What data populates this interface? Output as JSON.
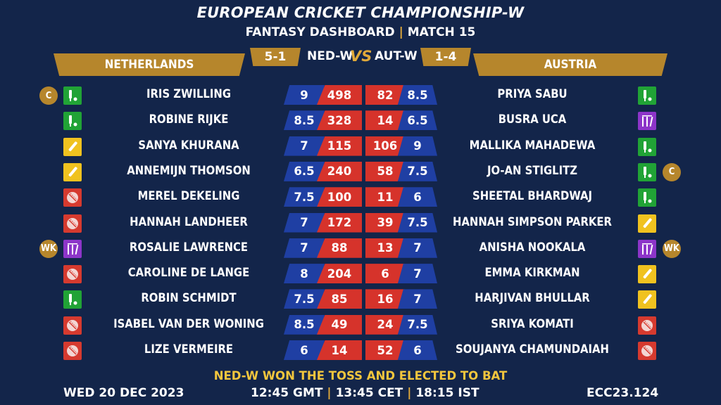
{
  "header": {
    "title": "EUROPEAN CRICKET CHAMPIONSHIP-W",
    "subtitle_left": "FANTASY DASHBOARD",
    "subtitle_sep": "|",
    "subtitle_right": "MATCH 15"
  },
  "match": {
    "team_left_name": "NETHERLANDS",
    "team_right_name": "AUSTRIA",
    "team_left_code": "NED-W",
    "team_right_code": "AUT-W",
    "team_left_record": "5-1",
    "team_right_record": "1-4",
    "vs": "VS"
  },
  "left_players": [
    {
      "name": "IRIS ZWILLING",
      "credit": "9",
      "points": "498",
      "role": "bat",
      "badge": "C"
    },
    {
      "name": "ROBINE RIJKE",
      "credit": "8.5",
      "points": "328",
      "role": "bat",
      "badge": ""
    },
    {
      "name": "SANYA KHURANA",
      "credit": "7",
      "points": "115",
      "role": "ar",
      "badge": ""
    },
    {
      "name": "ANNEMIJN THOMSON",
      "credit": "6.5",
      "points": "240",
      "role": "ar",
      "badge": ""
    },
    {
      "name": "MEREL DEKELING",
      "credit": "7.5",
      "points": "100",
      "role": "bowl",
      "badge": ""
    },
    {
      "name": "HANNAH LANDHEER",
      "credit": "7",
      "points": "172",
      "role": "bowl",
      "badge": ""
    },
    {
      "name": "ROSALIE LAWRENCE",
      "credit": "7",
      "points": "88",
      "role": "wk",
      "badge": "WK"
    },
    {
      "name": "CAROLINE DE LANGE",
      "credit": "8",
      "points": "204",
      "role": "bowl",
      "badge": ""
    },
    {
      "name": "ROBIN SCHMIDT",
      "credit": "7.5",
      "points": "85",
      "role": "bat",
      "badge": ""
    },
    {
      "name": "ISABEL VAN DER WONING",
      "credit": "8.5",
      "points": "49",
      "role": "bowl",
      "badge": ""
    },
    {
      "name": "LIZE VERMEIRE",
      "credit": "6",
      "points": "14",
      "role": "bowl",
      "badge": ""
    }
  ],
  "right_players": [
    {
      "name": "PRIYA SABU",
      "credit": "8.5",
      "points": "82",
      "role": "bat",
      "badge": ""
    },
    {
      "name": "BUSRA UCA",
      "credit": "6.5",
      "points": "14",
      "role": "wk",
      "badge": ""
    },
    {
      "name": "MALLIKA MAHADEWA",
      "credit": "9",
      "points": "106",
      "role": "bat",
      "badge": ""
    },
    {
      "name": "JO-AN STIGLITZ",
      "credit": "7.5",
      "points": "58",
      "role": "bat",
      "badge": "C"
    },
    {
      "name": "SHEETAL BHARDWAJ",
      "credit": "6",
      "points": "11",
      "role": "bat",
      "badge": ""
    },
    {
      "name": "HANNAH SIMPSON PARKER",
      "credit": "7.5",
      "points": "39",
      "role": "ar",
      "badge": ""
    },
    {
      "name": "ANISHA NOOKALA",
      "credit": "7",
      "points": "13",
      "role": "wk",
      "badge": "WK"
    },
    {
      "name": "EMMA KIRKMAN",
      "credit": "7",
      "points": "6",
      "role": "ar",
      "badge": ""
    },
    {
      "name": "HARJIVAN BHULLAR",
      "credit": "7",
      "points": "16",
      "role": "ar",
      "badge": ""
    },
    {
      "name": "SRIYA KOMATI",
      "credit": "7.5",
      "points": "24",
      "role": "bowl",
      "badge": ""
    },
    {
      "name": "SOUJANYA CHAMUNDAIAH",
      "credit": "6",
      "points": "52",
      "role": "bowl",
      "badge": ""
    }
  ],
  "footer": {
    "toss": "NED-W WON THE TOSS AND ELECTED TO BAT",
    "date": "WED 20 DEC 2023",
    "time_gmt": "12:45 GMT",
    "time_cet": "13:45 CET",
    "time_ist": "18:15 IST",
    "sep": "|",
    "code": "ECC23.124"
  },
  "colors": {
    "background": "#13254a",
    "gold": "#b6862c",
    "credit_blue": "#1f3fa3",
    "points_red": "#d63a2f",
    "bat_green": "#21a336",
    "allrounder_yellow": "#f0c21f",
    "keeper_purple": "#8d35c9",
    "toss_yellow": "#f2c63d"
  },
  "icons": {
    "bat": "batter-icon",
    "bowl": "ball-icon",
    "ar": "allrounder-bat-icon",
    "wk": "wicket-stumps-icon"
  }
}
